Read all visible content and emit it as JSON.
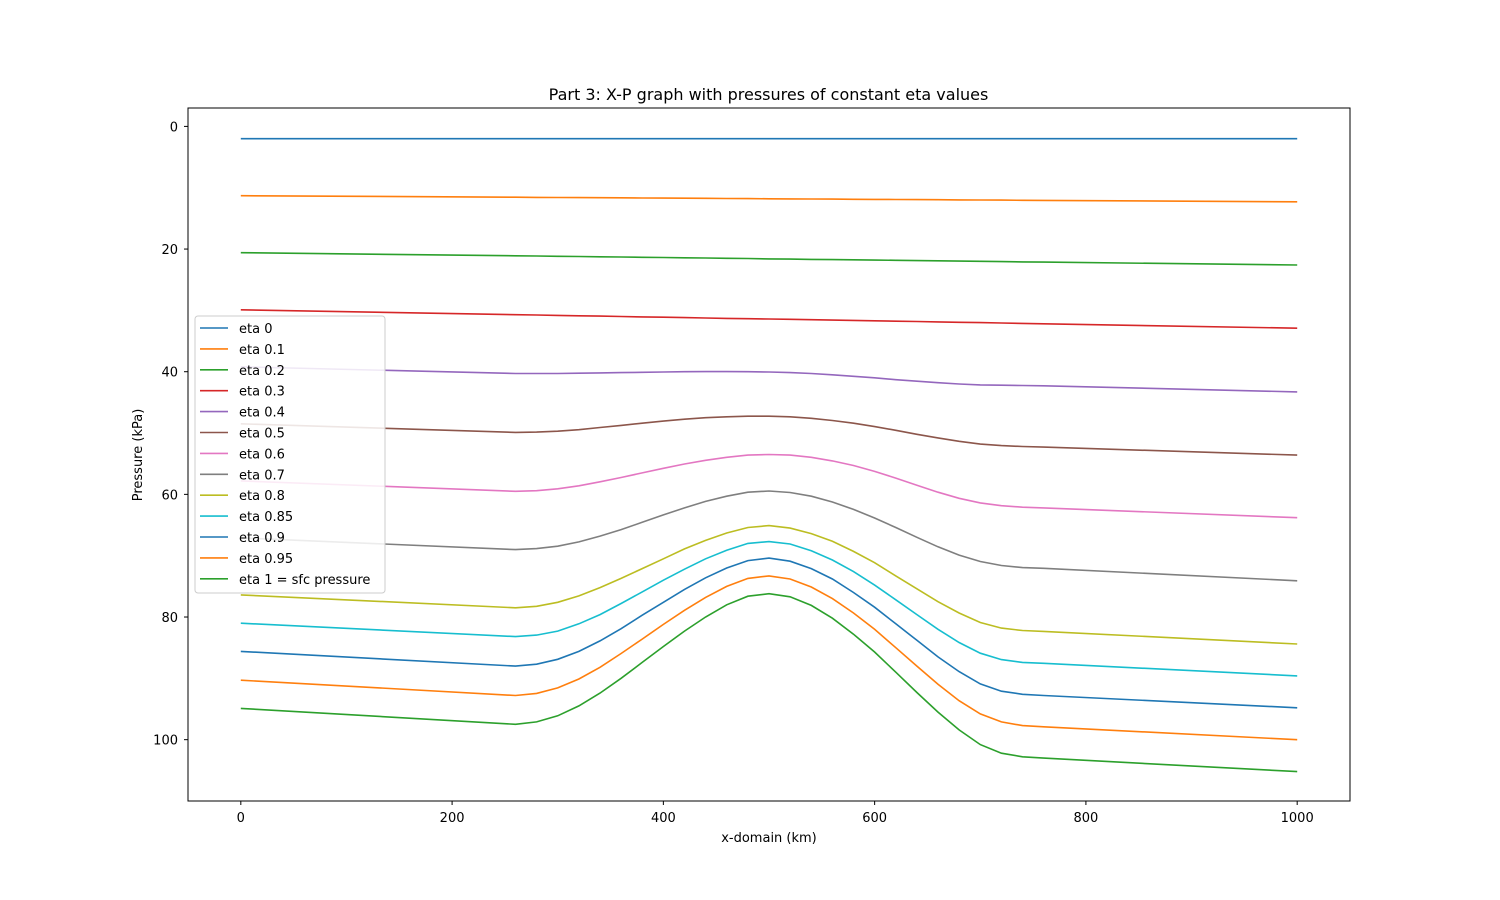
{
  "chart_data": {
    "type": "line",
    "title": "Part 3: X-P graph with pressures of constant eta values",
    "xlabel": "x-domain (km)",
    "ylabel": "Pressure (kPa)",
    "xlim": [
      -50,
      1050
    ],
    "ylim": [
      110,
      -3
    ],
    "y_inverted": true,
    "xticks": [
      0,
      200,
      400,
      600,
      800,
      1000
    ],
    "yticks": [
      0,
      20,
      40,
      60,
      80,
      100
    ],
    "grid": false,
    "legend_position": "center-left",
    "x": [
      0,
      260,
      280,
      300,
      320,
      340,
      360,
      380,
      400,
      420,
      440,
      460,
      480,
      500,
      520,
      540,
      560,
      580,
      600,
      620,
      640,
      660,
      680,
      700,
      720,
      740,
      760,
      1000
    ],
    "series": [
      {
        "name": "eta 0",
        "color": "#1f77b4",
        "values": [
          2,
          2,
          2,
          2,
          2,
          2,
          2,
          2,
          2,
          2,
          2,
          2,
          2,
          2,
          2,
          2,
          2,
          2,
          2,
          2,
          2,
          2,
          2,
          2,
          2,
          2,
          2,
          2
        ]
      },
      {
        "name": "eta 0.1",
        "color": "#ff7f0e",
        "values": [
          11.3,
          11.55,
          11.57,
          11.59,
          11.61,
          11.63,
          11.65,
          11.67,
          11.69,
          11.71,
          11.73,
          11.75,
          11.77,
          11.8,
          11.82,
          11.84,
          11.86,
          11.88,
          11.9,
          11.92,
          11.94,
          11.96,
          11.98,
          12.0,
          12.02,
          12.05,
          12.07,
          12.3
        ]
      },
      {
        "name": "eta 0.2",
        "color": "#2ca02c",
        "values": [
          20.6,
          21.1,
          21.14,
          21.18,
          21.22,
          21.26,
          21.3,
          21.34,
          21.38,
          21.42,
          21.46,
          21.5,
          21.54,
          21.6,
          21.64,
          21.68,
          21.72,
          21.76,
          21.8,
          21.84,
          21.88,
          21.92,
          21.96,
          22.0,
          22.04,
          22.09,
          22.13,
          22.6
        ]
      },
      {
        "name": "eta 0.3",
        "color": "#d62728",
        "values": [
          29.9,
          30.7,
          30.76,
          30.82,
          30.88,
          30.94,
          31.0,
          31.06,
          31.12,
          31.18,
          31.24,
          31.3,
          31.36,
          31.4,
          31.46,
          31.52,
          31.58,
          31.64,
          31.7,
          31.76,
          31.82,
          31.88,
          31.94,
          32.0,
          32.06,
          32.13,
          32.19,
          32.9
        ]
      },
      {
        "name": "eta 0.4",
        "color": "#9467bd",
        "values": [
          39.2,
          40.3,
          40.3,
          40.3,
          40.25,
          40.2,
          40.15,
          40.1,
          40.05,
          40.0,
          39.98,
          39.98,
          40.0,
          40.05,
          40.15,
          40.3,
          40.5,
          40.75,
          41.0,
          41.3,
          41.55,
          41.8,
          42.0,
          42.15,
          42.2,
          42.25,
          42.3,
          43.3
        ]
      },
      {
        "name": "eta 0.5",
        "color": "#8c564b",
        "values": [
          48.5,
          49.9,
          49.85,
          49.7,
          49.45,
          49.1,
          48.75,
          48.4,
          48.05,
          47.75,
          47.5,
          47.35,
          47.25,
          47.25,
          47.35,
          47.6,
          47.95,
          48.4,
          48.95,
          49.55,
          50.2,
          50.8,
          51.35,
          51.8,
          52.05,
          52.2,
          52.3,
          53.6
        ]
      },
      {
        "name": "eta 0.6",
        "color": "#e377c2",
        "values": [
          57.8,
          59.5,
          59.4,
          59.1,
          58.6,
          57.95,
          57.25,
          56.5,
          55.75,
          55.05,
          54.45,
          53.95,
          53.6,
          53.5,
          53.6,
          53.95,
          54.55,
          55.3,
          56.25,
          57.35,
          58.5,
          59.65,
          60.65,
          61.4,
          61.85,
          62.1,
          62.2,
          63.8
        ]
      },
      {
        "name": "eta 0.7",
        "color": "#7f7f7f",
        "values": [
          67.1,
          69.0,
          68.85,
          68.45,
          67.75,
          66.8,
          65.75,
          64.55,
          63.35,
          62.2,
          61.15,
          60.3,
          59.65,
          59.45,
          59.7,
          60.3,
          61.25,
          62.45,
          63.85,
          65.4,
          67.0,
          68.55,
          69.9,
          70.95,
          71.6,
          71.95,
          72.05,
          74.1
        ]
      },
      {
        "name": "eta 0.8",
        "color": "#bcbd22",
        "values": [
          76.4,
          78.5,
          78.25,
          77.6,
          76.55,
          75.2,
          73.7,
          72.1,
          70.5,
          68.9,
          67.5,
          66.3,
          65.4,
          65.1,
          65.5,
          66.4,
          67.65,
          69.3,
          71.15,
          73.3,
          75.4,
          77.5,
          79.35,
          80.9,
          81.8,
          82.2,
          82.35,
          84.4
        ]
      },
      {
        "name": "eta 0.85",
        "color": "#17becf",
        "values": [
          81.0,
          83.2,
          82.95,
          82.3,
          81.1,
          79.6,
          77.8,
          75.9,
          74.0,
          72.2,
          70.5,
          69.1,
          68.0,
          67.7,
          68.1,
          69.2,
          70.7,
          72.6,
          74.8,
          77.2,
          79.6,
          82.0,
          84.15,
          85.9,
          86.95,
          87.4,
          87.55,
          89.6
        ]
      },
      {
        "name": "eta 0.9",
        "color": "#1f77b4",
        "values": [
          85.6,
          88.0,
          87.7,
          86.9,
          85.6,
          83.9,
          81.9,
          79.7,
          77.6,
          75.5,
          73.6,
          72.0,
          70.8,
          70.4,
          70.9,
          72.1,
          73.8,
          76.0,
          78.4,
          81.1,
          83.8,
          86.5,
          88.9,
          90.9,
          92.1,
          92.6,
          92.8,
          94.8
        ]
      },
      {
        "name": "eta 0.95",
        "color": "#ff7f0e",
        "values": [
          90.3,
          92.8,
          92.45,
          91.55,
          90.1,
          88.2,
          85.95,
          83.6,
          81.2,
          78.9,
          76.8,
          75.0,
          73.7,
          73.3,
          73.8,
          75.1,
          77.0,
          79.35,
          82.0,
          85.0,
          88.0,
          90.95,
          93.65,
          95.8,
          97.1,
          97.7,
          97.9,
          100.0
        ]
      },
      {
        "name": "eta 1 = sfc pressure",
        "color": "#2ca02c",
        "values": [
          94.9,
          97.5,
          97.1,
          96.1,
          94.5,
          92.4,
          90.0,
          87.4,
          84.8,
          82.3,
          80.0,
          78.0,
          76.6,
          76.2,
          76.7,
          78.1,
          80.2,
          82.8,
          85.7,
          89.0,
          92.3,
          95.5,
          98.4,
          100.8,
          102.2,
          102.8,
          103.0,
          105.2
        ]
      }
    ]
  }
}
